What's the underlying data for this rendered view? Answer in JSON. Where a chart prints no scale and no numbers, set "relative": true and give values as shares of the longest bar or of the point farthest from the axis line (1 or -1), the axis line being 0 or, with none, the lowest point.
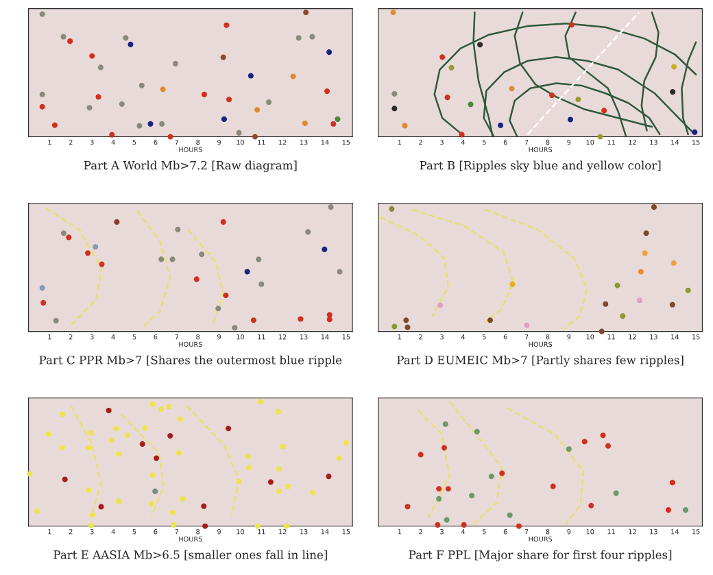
{
  "chart_data": [
    {
      "type": "scatter",
      "title": "Part A World Mb>7.2 [Raw diagram]",
      "xlabel": "HOURS",
      "relative": true,
      "xlim": [
        0,
        15.3
      ],
      "xticks": [
        1,
        2,
        3,
        4,
        5,
        6,
        7,
        8,
        9,
        10,
        11,
        12,
        13,
        14,
        15
      ],
      "series": [
        {
          "marker": "circle",
          "x": [
            0.65,
            1.96,
            1.65,
            4.59,
            4.82,
            3.0,
            3.41,
            9.35,
            13.1,
            12.76,
            13.4,
            14.2,
            9.2,
            6.94,
            10.5,
            12.5,
            5.35,
            6.35,
            0.65,
            3.3,
            8.3,
            9.47,
            11.35,
            14.1,
            4.41,
            0.65,
            2.88,
            10.8,
            9.24,
            5.76,
            5.24,
            6.3,
            1.24,
            13.06,
            14.4,
            14.6,
            3.94,
            6.7,
            10.7,
            9.94
          ],
          "values": [
            0.986,
            0.768,
            0.804,
            0.794,
            0.742,
            0.649,
            0.557,
            0.897,
            1.0,
            0.794,
            0.804,
            0.68,
            0.639,
            0.588,
            0.49,
            0.485,
            0.412,
            0.381,
            0.34,
            0.32,
            0.34,
            0.299,
            0.278,
            0.366,
            0.263,
            0.241,
            0.233,
            0.216,
            0.141,
            0.103,
            0.088,
            0.103,
            0.093,
            0.108,
            0.103,
            0.141,
            0.016,
            0.0,
            0.0,
            0.031
          ],
          "colors": [
            "#8a8a7a",
            "#d0301e",
            "#8a8a7a",
            "#8a8a7a",
            "#1a237e",
            "#d0301e",
            "#8a8a7a",
            "#d0301e",
            "#8b4a2a",
            "#8a8a7a",
            "#8a8a7a",
            "#1a237e",
            "#8b4a2a",
            "#8a8a7a",
            "#1a237e",
            "#e08a30",
            "#8a8a7a",
            "#e08a30",
            "#8a8a7a",
            "#d0301e",
            "#d0301e",
            "#d0301e",
            "#8a8a7a",
            "#d0301e",
            "#8a8a7a",
            "#d0301e",
            "#8a8a7a",
            "#e08a30",
            "#1a237e",
            "#1a237e",
            "#8a8a7a",
            "#8a8a7a",
            "#d0301e",
            "#e08a30",
            "#d0301e",
            "#4a8a3a",
            "#d0301e",
            "#d0301e",
            "#8b4a2a",
            "#8a8a7a"
          ]
        }
      ]
    },
    {
      "type": "scatter",
      "title": "Part B [Ripples sky blue and yellow color]",
      "xlabel": "HOURS",
      "relative": true,
      "xlim": [
        0,
        15.3
      ],
      "xticks": [
        1,
        2,
        3,
        4,
        5,
        6,
        7,
        8,
        9,
        10,
        11,
        12,
        13,
        14,
        15
      ],
      "series": [
        {
          "type": "line",
          "color": "#2f5a3a",
          "line_style": "solid",
          "x": [
            3.94,
            3.02,
            2.65,
            2.9,
            3.88,
            5.22,
            7.05,
            8.89,
            10.72,
            12.56,
            14.02,
            15.0
          ],
          "values": [
            0.02,
            0.15,
            0.34,
            0.54,
            0.71,
            0.82,
            0.89,
            0.91,
            0.88,
            0.79,
            0.66,
            0.5
          ]
        },
        {
          "type": "line",
          "color": "#2f5a3a",
          "line_style": "solid",
          "x": [
            5.46,
            4.98,
            5.1,
            5.95,
            7.05,
            8.4,
            9.87,
            11.33,
            13.04,
            14.02,
            14.88
          ],
          "values": [
            0.0,
            0.15,
            0.37,
            0.52,
            0.61,
            0.64,
            0.61,
            0.54,
            0.35,
            0.18,
            0.03
          ]
        },
        {
          "type": "line",
          "color": "#2f5a3a",
          "line_style": "solid",
          "x": [
            6.56,
            6.2,
            6.44,
            7.18,
            8.4,
            9.62,
            10.72,
            11.82,
            12.8,
            13.29
          ],
          "values": [
            0.0,
            0.13,
            0.29,
            0.39,
            0.43,
            0.41,
            0.35,
            0.27,
            0.15,
            0.02
          ]
        },
        {
          "type": "line",
          "color": "#2f5a3a",
          "line_style": "solid",
          "x": [
            4.55,
            4.49,
            4.73,
            5.22,
            5.4
          ],
          "values": [
            1.0,
            0.76,
            0.45,
            0.15,
            0.0
          ]
        },
        {
          "type": "line",
          "color": "#2f5a3a",
          "line_style": "solid",
          "x": [
            6.81,
            6.44,
            6.69,
            7.42,
            8.4,
            9.74,
            11.33,
            12.92
          ],
          "values": [
            1.0,
            0.81,
            0.59,
            0.42,
            0.32,
            0.22,
            0.15,
            0.08
          ]
        },
        {
          "type": "line",
          "color": "#2f5a3a",
          "line_style": "solid",
          "x": [
            9.32,
            8.83,
            9.01,
            9.87,
            10.84,
            11.33,
            11.7
          ],
          "values": [
            1.0,
            0.81,
            0.64,
            0.52,
            0.39,
            0.2,
            0.0
          ]
        },
        {
          "type": "line",
          "color": "#2f5a3a",
          "line_style": "solid",
          "x": [
            12.92,
            13.23,
            13.1,
            12.56,
            12.43,
            12.68
          ],
          "values": [
            1.0,
            0.84,
            0.64,
            0.45,
            0.25,
            0.05
          ]
        },
        {
          "type": "line",
          "color": "#2f5a3a",
          "line_style": "solid",
          "x": [
            15.0,
            14.63,
            14.33,
            14.39,
            14.63
          ],
          "values": [
            0.76,
            0.61,
            0.39,
            0.15,
            0.02
          ]
        },
        {
          "type": "line",
          "color": "#ffffff",
          "line_style": "dashed",
          "x": [
            7.05,
            12.31
          ],
          "values": [
            0.02,
            1.0
          ]
        },
        {
          "marker": "circle",
          "x": [
            0.7,
            4.8,
            3.02,
            3.45,
            6.3,
            3.26,
            4.36,
            0.76,
            0.76,
            1.25,
            3.94,
            5.77,
            8.2,
            9.44,
            9.07,
            10.66,
            9.13,
            10.48,
            13.96,
            13.9,
            14.94
          ],
          "values": [
            1.0,
            0.74,
            0.64,
            0.555,
            0.387,
            0.316,
            0.26,
            0.345,
            0.227,
            0.089,
            0.017,
            0.092,
            0.333,
            0.3,
            0.138,
            0.21,
            0.9,
            0.0,
            0.563,
            0.36,
            0.037
          ],
          "colors": [
            "#e08a30",
            "#2a2a2a",
            "#d0301e",
            "#9a9a30",
            "#e08a30",
            "#d0301e",
            "#4a8a3a",
            "#8a8a7a",
            "#2a2a2a",
            "#e08a30",
            "#d0301e",
            "#1a237e",
            "#d0301e",
            "#9a9a30",
            "#1a237e",
            "#d0301e",
            "#d0301e",
            "#9a9a30",
            "#c8b020",
            "#2a2a2a",
            "#1a237e"
          ]
        }
      ]
    },
    {
      "type": "scatter",
      "title": "Part C PPR Mb>7 [Shares the outermost blue ripple",
      "xlabel": "HOURS",
      "relative": true,
      "xlim": [
        0,
        15.3
      ],
      "xticks": [
        1,
        2,
        3,
        4,
        5,
        6,
        7,
        8,
        9,
        10,
        11,
        12,
        13,
        14,
        15
      ],
      "series": [
        {
          "type": "line",
          "color": "#e8e070",
          "line_style": "dashed",
          "x": [
            0.83,
            2.38,
            3.46,
            3.2,
            1.9
          ],
          "values": [
            0.99,
            0.82,
            0.51,
            0.26,
            0.03
          ]
        },
        {
          "type": "line",
          "color": "#e8e070",
          "line_style": "dashed",
          "x": [
            5.13,
            6.2,
            6.69,
            6.2,
            5.37
          ],
          "values": [
            0.97,
            0.73,
            0.43,
            0.16,
            0.03
          ]
        },
        {
          "type": "line",
          "color": "#e8e070",
          "line_style": "dashed",
          "x": [
            7.52,
            8.84,
            9.2,
            8.72
          ],
          "values": [
            0.82,
            0.56,
            0.31,
            0.06
          ]
        },
        {
          "marker": "circle",
          "x": [
            14.28,
            4.17,
            9.2,
            7.05,
            1.66,
            1.9,
            13.2,
            3.16,
            2.8,
            13.98,
            8.18,
            6.27,
            6.8,
            10.87,
            3.46,
            10.33,
            14.7,
            7.94,
            11.0,
            0.65,
            9.32,
            0.7,
            8.96,
            1.3,
            10.63,
            9.74,
            12.85,
            14.22,
            14.22
          ],
          "values": [
            1.0,
            0.88,
            0.88,
            0.82,
            0.79,
            0.756,
            0.8,
            0.68,
            0.63,
            0.66,
            0.62,
            0.58,
            0.58,
            0.58,
            0.54,
            0.48,
            0.48,
            0.42,
            0.38,
            0.35,
            0.29,
            0.23,
            0.185,
            0.087,
            0.09,
            0.03,
            0.1,
            0.134,
            0.096
          ],
          "colors": [
            "#8a8a7a",
            "#8b3a2a",
            "#d0301e",
            "#8a8a7a",
            "#8a8a7a",
            "#d0301e",
            "#8a8a7a",
            "#8a9ab0",
            "#d0301e",
            "#1a237e",
            "#8a8a7a",
            "#8a8a7a",
            "#8a8a7a",
            "#8a8a7a",
            "#d0301e",
            "#1a237e",
            "#8a8a7a",
            "#d0301e",
            "#8a8a7a",
            "#8a9ab0",
            "#d0301e",
            "#d0301e",
            "#8a8a7a",
            "#8a8a7a",
            "#d0301e",
            "#8a8a7a",
            "#d0301e",
            "#d0301e",
            "#d0301e"
          ]
        }
      ]
    },
    {
      "type": "scatter",
      "title": "Part D EUMEIC Mb>7 [Partly shares few ripples]",
      "xlabel": "HOURS",
      "relative": true,
      "xlim": [
        0,
        15.3
      ],
      "xticks": [
        1,
        2,
        3,
        4,
        5,
        6,
        7,
        8,
        9,
        10,
        11,
        12,
        13,
        14,
        15
      ],
      "series": [
        {
          "type": "line",
          "color": "#e8e070",
          "line_style": "dashed",
          "x": [
            0.07,
            1.93,
            3.11,
            3.3,
            2.55
          ],
          "values": [
            0.92,
            0.77,
            0.59,
            0.36,
            0.12
          ]
        },
        {
          "type": "line",
          "color": "#e8e070",
          "line_style": "dashed",
          "x": [
            1.56,
            4.04,
            5.9,
            6.39,
            5.77,
            5.03
          ],
          "values": [
            0.98,
            0.85,
            0.64,
            0.39,
            0.17,
            0.07
          ]
        },
        {
          "type": "line",
          "color": "#e8e070",
          "line_style": "dashed",
          "x": [
            5.03,
            7.51,
            9.24,
            9.86,
            9.49,
            8.75
          ],
          "values": [
            0.98,
            0.82,
            0.59,
            0.34,
            0.12,
            0.02
          ]
        },
        {
          "marker": "circle",
          "x": [
            0.63,
            13.02,
            12.65,
            12.59,
            12.4,
            13.95,
            6.33,
            11.29,
            14.63,
            10.73,
            13.89,
            12.34,
            2.92,
            11.54,
            5.28,
            1.31,
            0.76,
            1.38,
            7.01,
            10.55
          ],
          "values": [
            0.985,
            1.0,
            0.79,
            0.63,
            0.48,
            0.55,
            0.38,
            0.37,
            0.33,
            0.22,
            0.215,
            0.25,
            0.21,
            0.124,
            0.09,
            0.09,
            0.04,
            0.033,
            0.05,
            0.0
          ],
          "colors": [
            "#8a8a30",
            "#7a4a2a",
            "#7a4a2a",
            "#f0a040",
            "#f08a30",
            "#f0a040",
            "#e0b020",
            "#8a9a30",
            "#8a9a30",
            "#7a4a2a",
            "#7a4a2a",
            "#e0a0c0",
            "#e0a0c0",
            "#8a9a30",
            "#7a4a2a",
            "#7a4a2a",
            "#8a9a30",
            "#7a4a2a",
            "#e0a0c0",
            "#7a4a2a"
          ]
        }
      ]
    },
    {
      "type": "scatter",
      "title": "Part E AASIA Mb>6.5 [smaller ones fall in line]",
      "xlabel": "HOURS",
      "relative": true,
      "xlim": [
        0,
        15.3
      ],
      "xticks": [
        1,
        2,
        3,
        4,
        5,
        6,
        7,
        8,
        9,
        10,
        11,
        12,
        13,
        14,
        15
      ],
      "series": [
        {
          "type": "line",
          "color": "#e8e070",
          "line_style": "dashed",
          "x": [
            2.01,
            2.96,
            3.43,
            2.96
          ],
          "values": [
            0.97,
            0.67,
            0.35,
            0.08
          ]
        },
        {
          "type": "line",
          "color": "#e8e070",
          "line_style": "dashed",
          "x": [
            4.38,
            6.15,
            6.39,
            5.8
          ],
          "values": [
            0.9,
            0.59,
            0.32,
            0.08
          ]
        },
        {
          "type": "line",
          "color": "#e8e070",
          "line_style": "dashed",
          "x": [
            7.46,
            9.23,
            9.94,
            9.59
          ],
          "values": [
            0.97,
            0.65,
            0.38,
            0.08
          ]
        },
        {
          "marker": "circle",
          "color": "#ece44a",
          "x": [
            5.86,
            6.63,
            6.27,
            10.95,
            11.8,
            1.6,
            7.16,
            5.5,
            4.14,
            2.96,
            0.95,
            4.67,
            3.91,
            1.6,
            2.84,
            15.0,
            12.01,
            7.1,
            4.26,
            10.36,
            14.67,
            10.41,
            11.83,
            0.06,
            5.86,
            9.94,
            2.84,
            12.25,
            11.83,
            13.43,
            7.28,
            4.26,
            5.8,
            0.41,
            3.02,
            6.8,
            6.86,
            2.96,
            10.83,
            12.19
          ],
          "values": [
            0.98,
            0.96,
            0.94,
            1.0,
            0.92,
            0.9,
            0.86,
            0.79,
            0.785,
            0.75,
            0.74,
            0.73,
            0.69,
            0.63,
            0.63,
            0.67,
            0.64,
            0.59,
            0.58,
            0.56,
            0.546,
            0.47,
            0.46,
            0.42,
            0.41,
            0.36,
            0.29,
            0.32,
            0.28,
            0.27,
            0.22,
            0.2,
            0.18,
            0.12,
            0.09,
            0.11,
            0.01,
            0.005,
            0.0,
            0.0
          ]
        },
        {
          "marker": "circle",
          "color": "#a3201a",
          "x": [
            3.79,
            9.44,
            6.69,
            5.38,
            6.04,
            1.72,
            11.44,
            14.18,
            3.43,
            8.28,
            8.34
          ],
          "values": [
            0.93,
            0.785,
            0.726,
            0.66,
            0.546,
            0.376,
            0.355,
            0.4,
            0.156,
            0.16,
            0.0
          ]
        },
        {
          "marker": "circle",
          "color": "#7a8a8a",
          "x": [
            5.98
          ],
          "values": [
            0.28
          ]
        }
      ]
    },
    {
      "type": "scatter",
      "title": "Part F PPL [Major share for first four ripples]",
      "xlabel": "HOURS",
      "relative": true,
      "xlim": [
        0,
        15.3
      ],
      "xticks": [
        1,
        2,
        3,
        4,
        5,
        6,
        7,
        8,
        9,
        10,
        11,
        12,
        13,
        14,
        15
      ],
      "series": [
        {
          "type": "line",
          "color": "#e8e070",
          "line_style": "dashed",
          "x": [
            3.36,
            4.6,
            5.84,
            5.59,
            4.47
          ],
          "values": [
            1.0,
            0.74,
            0.47,
            0.19,
            0.01
          ]
        },
        {
          "type": "line",
          "color": "#e8e070",
          "line_style": "dashed",
          "x": [
            1.87,
            2.99,
            3.36,
            2.37
          ],
          "values": [
            0.93,
            0.74,
            0.4,
            0.07
          ]
        },
        {
          "type": "line",
          "color": "#e8e070",
          "line_style": "dashed",
          "x": [
            6.08,
            8.31,
            9.68,
            9.55,
            8.81
          ],
          "values": [
            0.95,
            0.74,
            0.44,
            0.17,
            0.01
          ]
        },
        {
          "marker": "circle",
          "color": "#d0301e",
          "x": [
            3.11,
            2.0,
            10.61,
            9.74,
            10.85,
            5.84,
            2.86,
            3.3,
            8.25,
            13.89,
            1.38,
            10.05,
            13.7,
            2.8,
            4.04,
            6.64
          ],
          "values": [
            0.63,
            0.575,
            0.73,
            0.68,
            0.645,
            0.425,
            0.3,
            0.3,
            0.32,
            0.35,
            0.157,
            0.165,
            0.13,
            0.01,
            0.01,
            0.0
          ]
        },
        {
          "marker": "circle",
          "color": "#6a9a6a",
          "x": [
            3.17,
            4.66,
            9.0,
            5.34,
            4.41,
            11.23,
            2.86,
            14.51,
            6.21,
            3.23
          ],
          "values": [
            0.82,
            0.76,
            0.62,
            0.4,
            0.245,
            0.265,
            0.22,
            0.13,
            0.088,
            0.05
          ]
        }
      ]
    }
  ]
}
